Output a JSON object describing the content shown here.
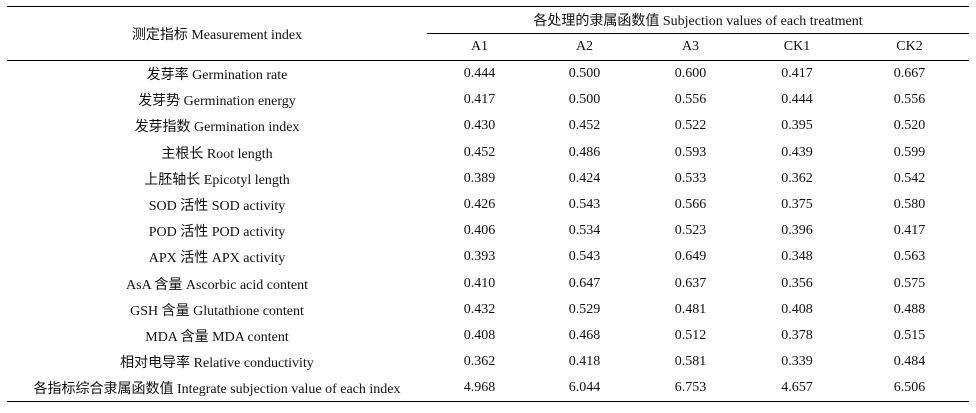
{
  "table": {
    "header": {
      "index_label": "测定指标 Measurement index",
      "group_label": "各处理的隶属函数值 Subjection values of each treatment",
      "columns": [
        "A1",
        "A2",
        "A3",
        "CK1",
        "CK2"
      ]
    },
    "rows": [
      {
        "name": "发芽率 Germination rate",
        "values": [
          "0.444",
          "0.500",
          "0.600",
          "0.417",
          "0.667"
        ]
      },
      {
        "name": "发芽势 Germination energy",
        "values": [
          "0.417",
          "0.500",
          "0.556",
          "0.444",
          "0.556"
        ]
      },
      {
        "name": "发芽指数 Germination index",
        "values": [
          "0.430",
          "0.452",
          "0.522",
          "0.395",
          "0.520"
        ]
      },
      {
        "name": "主根长 Root length",
        "values": [
          "0.452",
          "0.486",
          "0.593",
          "0.439",
          "0.599"
        ]
      },
      {
        "name": "上胚轴长 Epicotyl length",
        "values": [
          "0.389",
          "0.424",
          "0.533",
          "0.362",
          "0.542"
        ]
      },
      {
        "name": "SOD 活性 SOD activity",
        "values": [
          "0.426",
          "0.543",
          "0.566",
          "0.375",
          "0.580"
        ]
      },
      {
        "name": "POD 活性 POD activity",
        "values": [
          "0.406",
          "0.534",
          "0.523",
          "0.396",
          "0.417"
        ]
      },
      {
        "name": "APX 活性 APX activity",
        "values": [
          "0.393",
          "0.543",
          "0.649",
          "0.348",
          "0.563"
        ]
      },
      {
        "name": "AsA 含量 Ascorbic acid content",
        "values": [
          "0.410",
          "0.647",
          "0.637",
          "0.356",
          "0.575"
        ]
      },
      {
        "name": "GSH 含量 Glutathione content",
        "values": [
          "0.432",
          "0.529",
          "0.481",
          "0.408",
          "0.488"
        ]
      },
      {
        "name": "MDA 含量 MDA content",
        "values": [
          "0.408",
          "0.468",
          "0.512",
          "0.378",
          "0.515"
        ]
      },
      {
        "name": "相对电导率 Relative conductivity",
        "values": [
          "0.362",
          "0.418",
          "0.581",
          "0.339",
          "0.484"
        ]
      },
      {
        "name": "各指标综合隶属函数值 Integrate subjection value of each index",
        "values": [
          "4.968",
          "6.044",
          "6.753",
          "4.657",
          "6.506"
        ]
      }
    ]
  }
}
